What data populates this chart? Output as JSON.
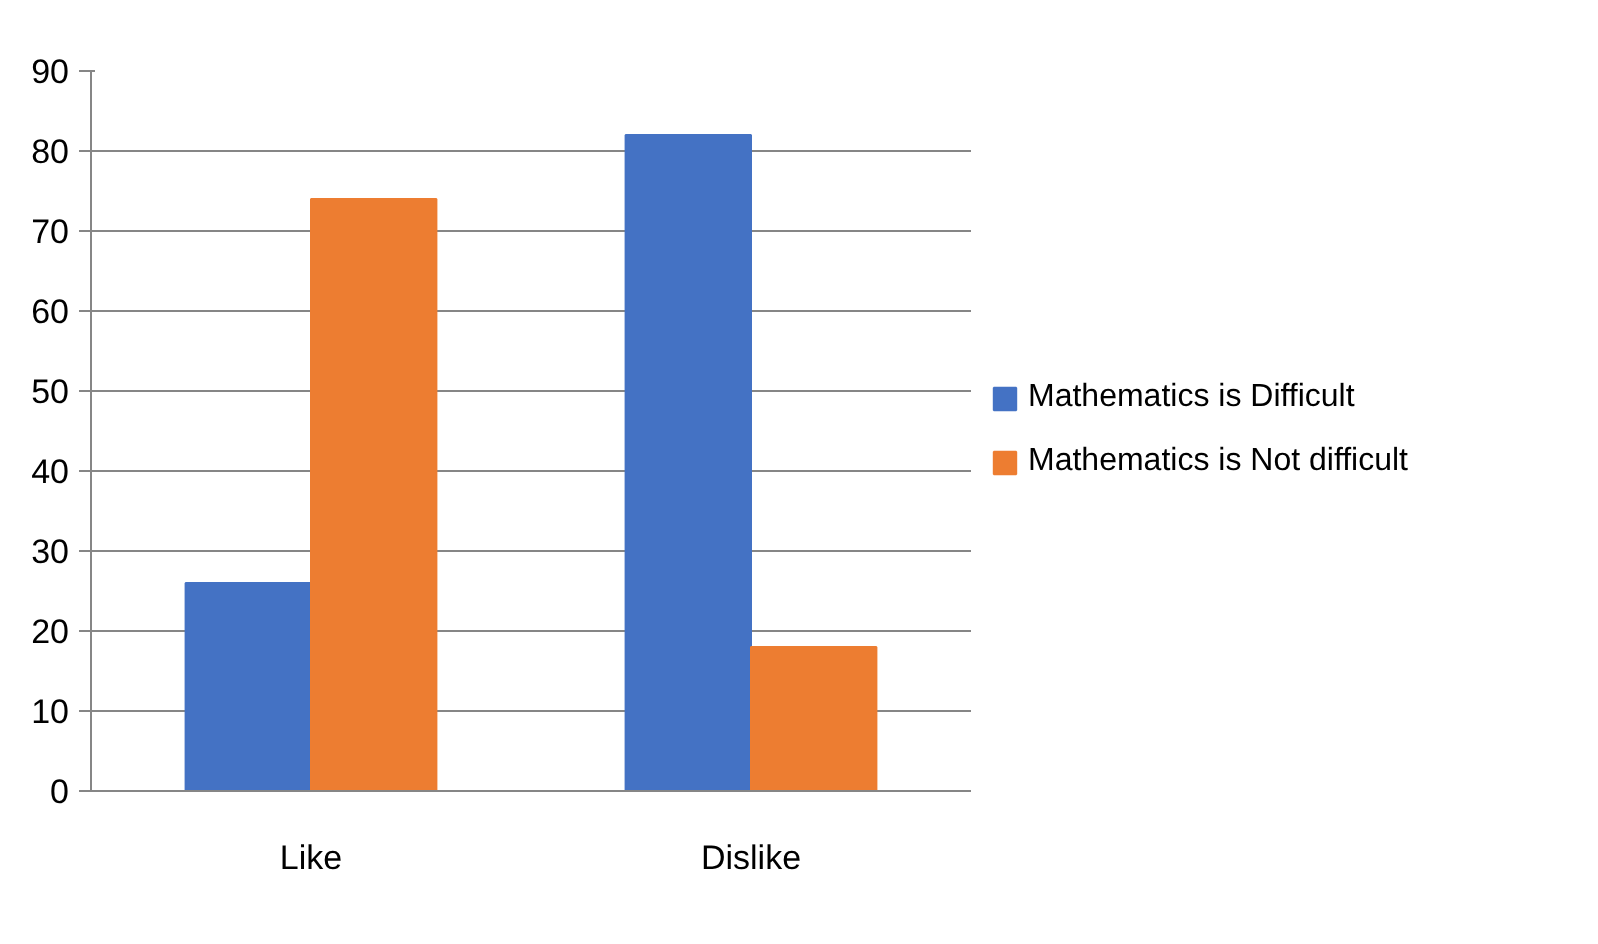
{
  "chart_data": {
    "type": "bar",
    "categories": [
      "Like",
      "Dislike"
    ],
    "series": [
      {
        "name": "Mathematics is Difficult",
        "color": "#4472c4",
        "values": [
          26,
          82
        ]
      },
      {
        "name": "Mathematics is Not difficult",
        "color": "#ed7d31",
        "values": [
          74,
          18
        ]
      }
    ],
    "ylim": [
      0,
      90
    ],
    "yticks": [
      0,
      10,
      20,
      30,
      40,
      50,
      60,
      70,
      80,
      90
    ],
    "grid": "y",
    "legend": "right"
  }
}
